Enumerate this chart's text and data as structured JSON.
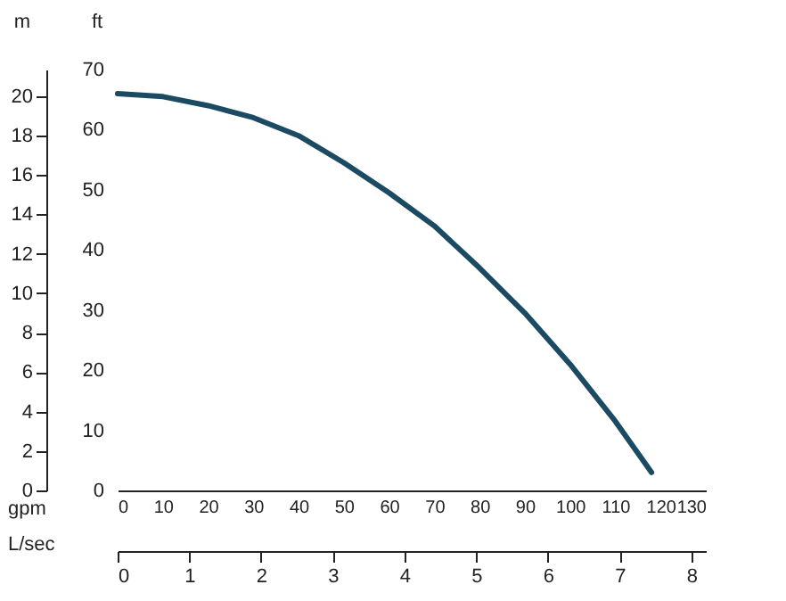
{
  "chart_data": {
    "type": "line",
    "xlabel": "gpm",
    "x2label": "L/sec",
    "ylabel": "ft",
    "y2label": "m",
    "x": [
      0,
      10,
      20,
      30,
      40,
      50,
      60,
      70,
      80,
      90,
      100,
      110,
      118
    ],
    "series": [
      {
        "color": "#1b4a63",
        "values": [
          66,
          65.5,
          64,
          62,
          59,
          54.5,
          49.5,
          44,
          37,
          29.5,
          21,
          11.5,
          3
        ]
      }
    ],
    "xlim": [
      0,
      130
    ],
    "xticks": [
      0,
      10,
      20,
      30,
      40,
      50,
      60,
      70,
      80,
      90,
      100,
      110,
      120,
      130
    ],
    "x2lim": [
      0,
      8.2
    ],
    "x2ticks": [
      0,
      1,
      2,
      3,
      4,
      5,
      6,
      7,
      8
    ],
    "ylim": [
      0,
      70
    ],
    "yticks": [
      0,
      10,
      20,
      30,
      40,
      50,
      60,
      70
    ],
    "y2lim": [
      0,
      21.34
    ],
    "y2ticks": [
      0,
      2,
      4,
      6,
      8,
      10,
      12,
      14,
      16,
      18,
      20
    ],
    "grid": false,
    "line_style": "solid",
    "marker": "none"
  }
}
